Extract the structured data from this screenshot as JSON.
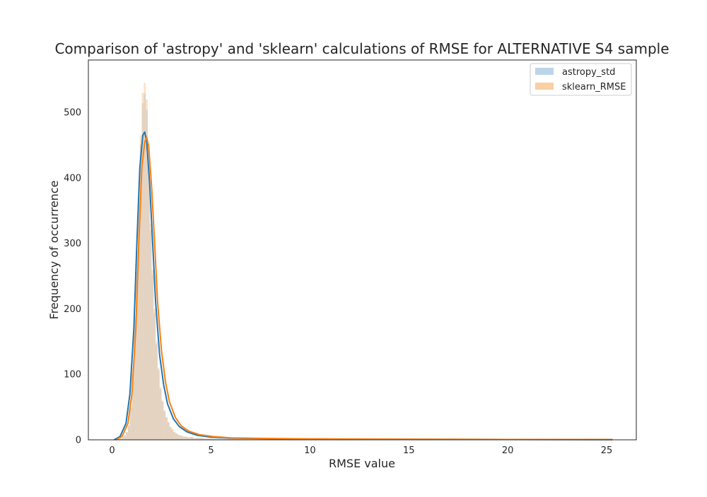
{
  "chart_data": {
    "type": "histogram",
    "title": "Comparison of 'astropy' and 'sklearn' calculations of RMSE for ALTERNATIVE S4 sample",
    "xlabel": "RMSE value",
    "ylabel": "Frequency of occurrence",
    "xlim": [
      -1.2,
      26.5
    ],
    "ylim": [
      0,
      580
    ],
    "x_ticks": [
      0,
      5,
      10,
      15,
      20,
      25
    ],
    "y_ticks": [
      0,
      100,
      200,
      300,
      400,
      500
    ],
    "grid": false,
    "legend": "top-right",
    "series": [
      {
        "name": "astropy_std",
        "color": "#1f77b4",
        "bar_color": "#bcd4ea",
        "kde": {
          "x": [
            0.1,
            0.4,
            0.7,
            0.9,
            1.1,
            1.25,
            1.4,
            1.55,
            1.65,
            1.75,
            1.9,
            2.05,
            2.2,
            2.4,
            2.6,
            2.8,
            3.1,
            3.4,
            3.8,
            4.3,
            5.0,
            6.0,
            8.0,
            10.0,
            15.0,
            20.0,
            25.3
          ],
          "y": [
            0,
            5,
            25,
            70,
            170,
            300,
            415,
            465,
            470,
            455,
            390,
            300,
            210,
            130,
            85,
            55,
            32,
            20,
            12,
            7,
            4,
            2.5,
            1.8,
            1.2,
            0.8,
            0.5,
            0.3
          ]
        }
      },
      {
        "name": "sklearn_RMSE",
        "color": "#ff7f0e",
        "bar_color": "#f9cfa4",
        "kde": {
          "x": [
            0.2,
            0.5,
            0.8,
            1.0,
            1.2,
            1.35,
            1.5,
            1.65,
            1.75,
            1.85,
            2.0,
            2.15,
            2.3,
            2.5,
            2.7,
            2.9,
            3.2,
            3.5,
            3.9,
            4.4,
            5.1,
            6.0,
            8.0,
            10.0,
            15.0,
            20.0,
            25.3
          ],
          "y": [
            0,
            5,
            25,
            70,
            170,
            300,
            415,
            455,
            462,
            448,
            385,
            300,
            210,
            135,
            88,
            58,
            34,
            21,
            13,
            8,
            5,
            3,
            2,
            1.5,
            1,
            0.6,
            0.4
          ]
        }
      }
    ],
    "histogram": {
      "bin_width": 0.1,
      "x_start": 0.0,
      "counts": [
        0,
        0,
        1,
        1,
        2,
        4,
        7,
        12,
        22,
        50,
        100,
        190,
        290,
        370,
        465,
        530,
        545,
        520,
        430,
        330,
        260,
        200,
        150,
        110,
        80,
        60,
        45,
        35,
        27,
        20,
        16,
        12,
        10,
        8,
        7,
        6,
        5,
        5,
        4,
        4,
        4,
        3,
        3,
        3,
        3,
        3,
        2,
        2,
        2,
        2
      ],
      "tail_level": 1.5,
      "tail_end": 25.3
    }
  }
}
